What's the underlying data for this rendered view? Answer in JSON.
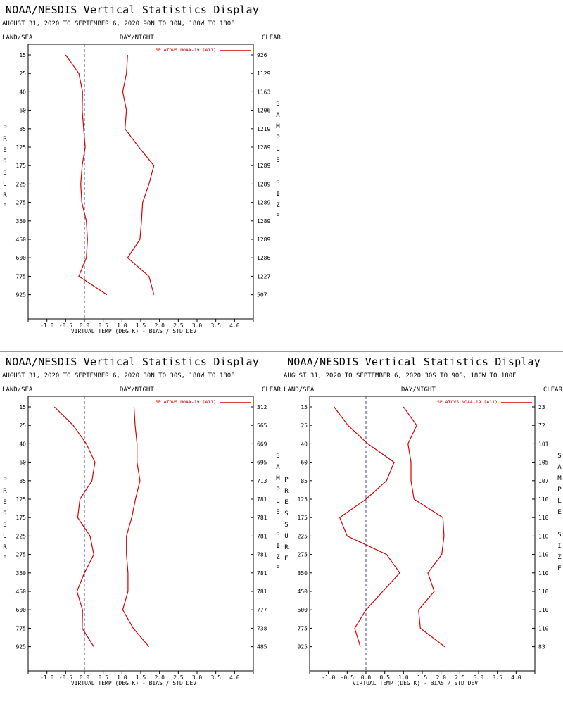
{
  "window_title": "NOAA/NESDIS Vertical Statistics Display",
  "header": {
    "left": "LAND/SEA",
    "center": "DAY/NIGHT",
    "right": "CLEAR",
    "left_vertical": "PRESSURE",
    "right_vertical": "SAMPLE SIZE"
  },
  "colors": {
    "series": "#d40000",
    "axis": "#000000",
    "zero_line": "#4a4a8a",
    "divider": "#9a9a9a"
  },
  "chart_data": [
    {
      "type": "line",
      "title": "NOAA/NESDIS Vertical Statistics Display",
      "subtitle": "AUGUST 31, 2020 TO SEPTEMBER 6, 2020 90N TO 30N, 180W TO 180E",
      "xlabel": "VIRTUAL TEMP (DEG K) - BIAS / STD DEV",
      "ylabel": "PRESSURE",
      "y2label": "SAMPLE SIZE",
      "xlim": [
        -1.5,
        4.5
      ],
      "xticks": [
        -1.0,
        -0.5,
        0.0,
        0.5,
        1.0,
        1.5,
        2.0,
        2.5,
        3.0,
        3.5,
        4.0
      ],
      "pressure_levels": [
        15,
        25,
        40,
        60,
        85,
        125,
        175,
        225,
        275,
        350,
        450,
        600,
        775,
        925
      ],
      "sample_size": [
        926,
        1129,
        1163,
        1206,
        1219,
        1289,
        1289,
        1289,
        1289,
        1289,
        1289,
        1286,
        1227,
        507
      ],
      "legend": "SP ATOVS NOAA-19 (A11)",
      "series": [
        {
          "name": "bias",
          "values": [
            -0.5,
            -0.15,
            -0.05,
            -0.06,
            -0.02,
            0.02,
            -0.06,
            -0.1,
            -0.07,
            0.05,
            0.08,
            0.05,
            -0.15,
            0.6
          ]
        },
        {
          "name": "std_dev",
          "values": [
            1.15,
            1.12,
            1.02,
            1.12,
            1.08,
            1.45,
            1.85,
            1.72,
            1.55,
            1.52,
            1.48,
            1.15,
            1.72,
            1.85
          ]
        }
      ]
    },
    {
      "type": "line",
      "title": "NOAA/NESDIS Vertical Statistics Display",
      "subtitle": "AUGUST 31, 2020 TO SEPTEMBER 6, 2020 30N TO 30S, 180W TO 180E",
      "xlabel": "VIRTUAL TEMP (DEG K) - BIAS / STD DEV",
      "ylabel": "PRESSURE",
      "y2label": "SAMPLE SIZE",
      "xlim": [
        -1.5,
        4.5
      ],
      "xticks": [
        -1.0,
        -0.5,
        0.0,
        0.5,
        1.0,
        1.5,
        2.0,
        2.5,
        3.0,
        3.5,
        4.0
      ],
      "pressure_levels": [
        15,
        25,
        40,
        60,
        85,
        125,
        175,
        225,
        275,
        350,
        450,
        600,
        775,
        925
      ],
      "sample_size": [
        312,
        565,
        669,
        695,
        713,
        781,
        781,
        781,
        781,
        781,
        781,
        777,
        738,
        485
      ],
      "legend": "SP ATOVS NOAA-19 (A11)",
      "series": [
        {
          "name": "bias",
          "values": [
            -0.8,
            -0.3,
            0.05,
            0.28,
            0.2,
            -0.12,
            -0.18,
            0.15,
            0.25,
            0.0,
            -0.2,
            -0.05,
            -0.06,
            0.25
          ]
        },
        {
          "name": "std_dev",
          "values": [
            1.32,
            1.35,
            1.4,
            1.4,
            1.48,
            1.36,
            1.26,
            1.12,
            1.12,
            1.16,
            1.16,
            1.02,
            1.3,
            1.72
          ]
        }
      ]
    },
    {
      "type": "line",
      "title": "NOAA/NESDIS Vertical Statistics Display",
      "subtitle": "AUGUST 31, 2020 TO SEPTEMBER 6, 2020 30S TO 90S, 180W TO 180E",
      "xlabel": "VIRTUAL TEMP (DEG K) - BIAS / STD DEV",
      "ylabel": "PRESSURE",
      "y2label": "SAMPLE SIZE",
      "xlim": [
        -1.5,
        4.5
      ],
      "xticks": [
        -1.0,
        -0.5,
        0.0,
        0.5,
        1.0,
        1.5,
        2.0,
        2.5,
        3.0,
        3.5,
        4.0
      ],
      "pressure_levels": [
        15,
        25,
        40,
        60,
        85,
        125,
        175,
        225,
        275,
        350,
        450,
        600,
        775,
        925
      ],
      "sample_size": [
        23,
        72,
        101,
        105,
        107,
        110,
        110,
        110,
        110,
        110,
        110,
        110,
        110,
        83
      ],
      "legend": "SP ATOVS NOAA-19 (A11)",
      "series": [
        {
          "name": "bias",
          "values": [
            -0.85,
            -0.48,
            0.05,
            0.75,
            0.55,
            0.0,
            -0.7,
            -0.5,
            0.55,
            0.9,
            0.45,
            0.0,
            -0.3,
            -0.15
          ]
        },
        {
          "name": "std_dev",
          "values": [
            1.0,
            1.35,
            1.12,
            1.2,
            1.2,
            1.28,
            2.05,
            2.08,
            2.02,
            1.65,
            1.82,
            1.4,
            1.45,
            2.1
          ]
        }
      ]
    }
  ]
}
